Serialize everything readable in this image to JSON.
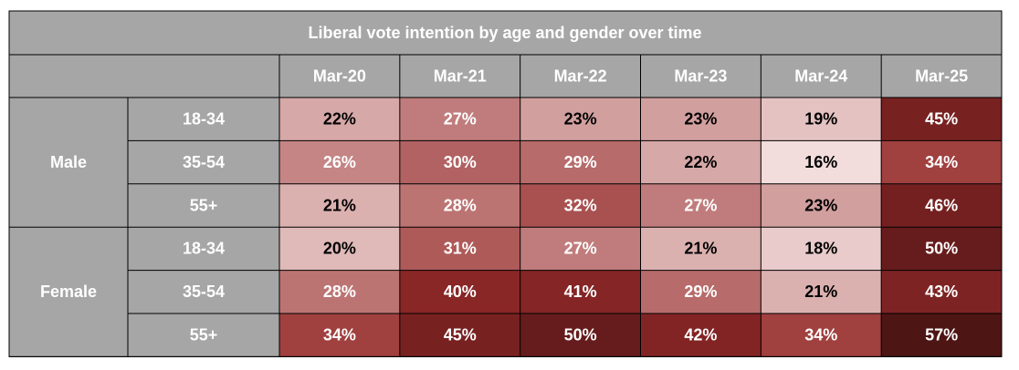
{
  "chart_data": {
    "type": "heatmap",
    "title": "Liberal vote intention by age and gender over time",
    "columns": [
      "Mar-20",
      "Mar-21",
      "Mar-22",
      "Mar-23",
      "Mar-24",
      "Mar-25"
    ],
    "groups": [
      {
        "name": "Male",
        "rows": [
          {
            "label": "18-34",
            "values": [
              22,
              27,
              23,
              23,
              19,
              45
            ]
          },
          {
            "label": "35-54",
            "values": [
              26,
              30,
              29,
              22,
              16,
              34
            ]
          },
          {
            "label": "55+",
            "values": [
              21,
              28,
              32,
              27,
              23,
              46
            ]
          }
        ]
      },
      {
        "name": "Female",
        "rows": [
          {
            "label": "18-34",
            "values": [
              20,
              31,
              27,
              21,
              18,
              50
            ]
          },
          {
            "label": "35-54",
            "values": [
              28,
              40,
              41,
              29,
              21,
              43
            ]
          },
          {
            "label": "55+",
            "values": [
              34,
              45,
              50,
              42,
              34,
              57
            ]
          }
        ]
      }
    ],
    "value_suffix": "%"
  },
  "colors": {
    "header_bg": "#a6a6a6",
    "header_text": "#ffffff",
    "cell_text": "#000000",
    "cell_text_dark": "#ffffff",
    "border": "#000000",
    "scale_low": "#f2dcdc",
    "scale_mid": "#952a29",
    "scale_high": "#4e1515"
  }
}
